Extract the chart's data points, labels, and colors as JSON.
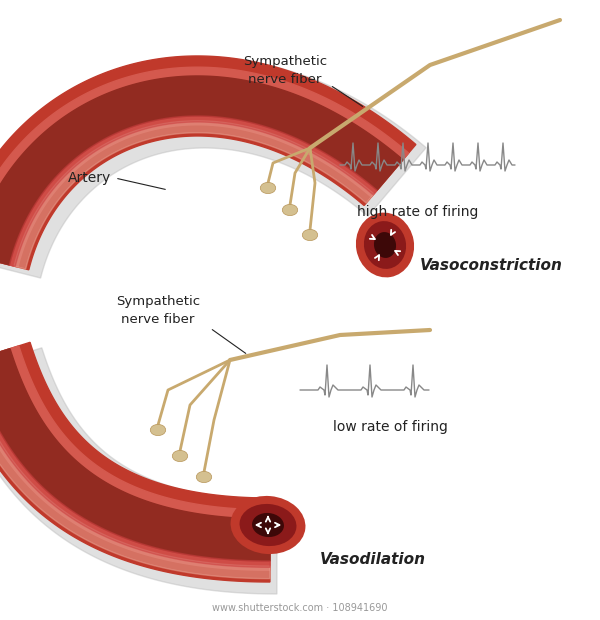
{
  "bg_color": "#ffffff",
  "artery_outer_color": "#c0392b",
  "artery_mid_color": "#a93226",
  "artery_inner_color": "#922b21",
  "artery_highlight": "#e8b4b0",
  "artery_dark_end": "#7b241c",
  "nerve_color": "#c8a96e",
  "nerve_bulb_color": "#d4c090",
  "shadow_color": "#d0d0d0",
  "text_color": "#222222",
  "ecg_color": "#888888",
  "label_artery": "Artery",
  "label_symp1": "Sympathetic\nnerve fiber",
  "label_symp2": "Sympathetic\nnerve fiber",
  "label_high": "high rate of firing",
  "label_low": "low rate of firing",
  "label_vasoconstriction": "Vasoconstriction",
  "label_vasodilation": "Vasodilation",
  "watermark": "www.shutterstock.com · 108941690"
}
